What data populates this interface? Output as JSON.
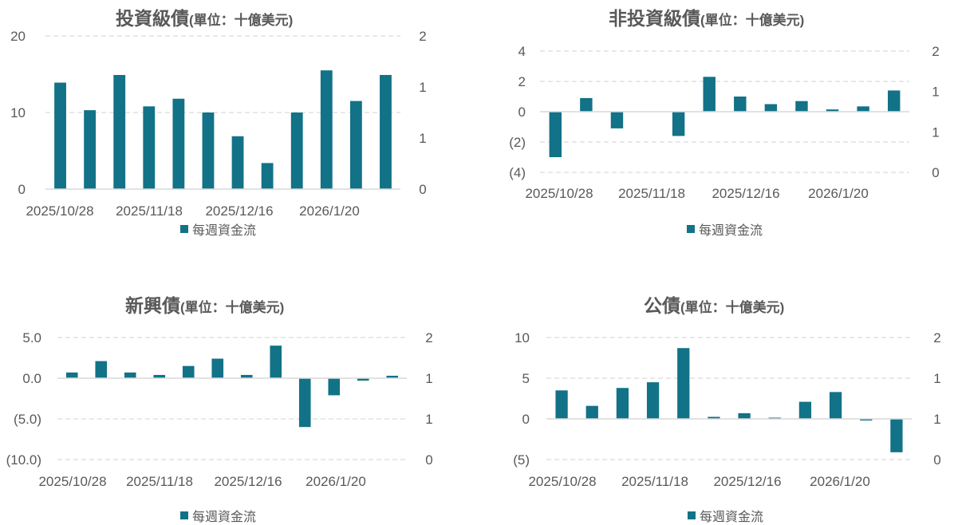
{
  "colors": {
    "bar": "#127287",
    "negative_label": "#c00000",
    "text": "#595959",
    "grid": "#d9d9d9"
  },
  "chart_data": [
    {
      "type": "bar",
      "title": "投資級債",
      "unit": "(單位：十億美元)",
      "legend": "每週資金流",
      "ylim": [
        0,
        20
      ],
      "yticks": [
        "0",
        "10",
        "20"
      ],
      "y2ticks": [
        "0",
        "1",
        "1",
        "2"
      ],
      "xticks": [
        "2025/10/28",
        "2025/11/18",
        "2025/12/16",
        "2026/1/20"
      ],
      "values": [
        13.9,
        10.3,
        14.9,
        10.8,
        11.8,
        10.0,
        6.9,
        3.4,
        10.0,
        15.5,
        11.5,
        14.9
      ]
    },
    {
      "type": "bar",
      "title": "非投資級債",
      "unit": "(單位：十億美元)",
      "legend": "每週資金流",
      "ylim": [
        -4,
        4
      ],
      "yticks": [
        "(4)",
        "(2)",
        "0",
        "2",
        "4"
      ],
      "y2ticks": [
        "0",
        "1",
        "1",
        "2"
      ],
      "xticks": [
        "2025/10/28",
        "2025/11/18",
        "2025/12/16",
        "2026/1/20"
      ],
      "values": [
        -3.0,
        0.9,
        -1.1,
        0.0,
        -1.6,
        2.3,
        1.0,
        0.5,
        0.7,
        0.15,
        0.35,
        1.4
      ]
    },
    {
      "type": "bar",
      "title": "新興債",
      "unit": "(單位：十億美元)",
      "legend": "每週資金流",
      "ylim": [
        -10,
        5
      ],
      "yticks": [
        "(10.0)",
        "(5.0)",
        "0.0",
        "5.0"
      ],
      "y2ticks": [
        "0",
        "1",
        "1",
        "2"
      ],
      "xticks": [
        "2025/10/28",
        "2025/11/18",
        "2025/12/16",
        "2026/1/20"
      ],
      "values": [
        0.7,
        2.1,
        0.7,
        0.4,
        1.5,
        2.4,
        0.4,
        4.0,
        -6.0,
        -2.1,
        -0.3,
        0.3
      ]
    },
    {
      "type": "bar",
      "title": "公債",
      "unit": "(單位：十億美元)",
      "legend": "每週資金流",
      "ylim": [
        -5,
        10
      ],
      "yticks": [
        "(5)",
        "0",
        "5",
        "10"
      ],
      "y2ticks": [
        "0",
        "1",
        "1",
        "2"
      ],
      "xticks": [
        "2025/10/28",
        "2025/11/18",
        "2025/12/16",
        "2026/1/20"
      ],
      "values": [
        3.5,
        1.6,
        3.8,
        4.5,
        8.7,
        0.25,
        0.7,
        0.15,
        2.1,
        3.3,
        -0.2,
        -4.1
      ]
    }
  ]
}
